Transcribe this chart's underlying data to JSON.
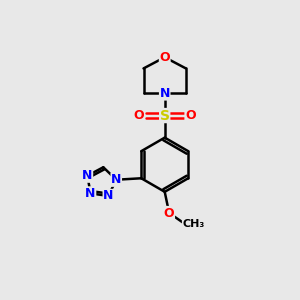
{
  "background_color": "#e8e8e8",
  "bond_color": "#000000",
  "N_color": "#0000ff",
  "O_color": "#ff0000",
  "S_color": "#cccc00",
  "figsize": [
    3.0,
    3.0
  ],
  "dpi": 100,
  "lw": 1.8,
  "font_size": 9,
  "xlim": [
    0,
    10
  ],
  "ylim": [
    0,
    10
  ]
}
